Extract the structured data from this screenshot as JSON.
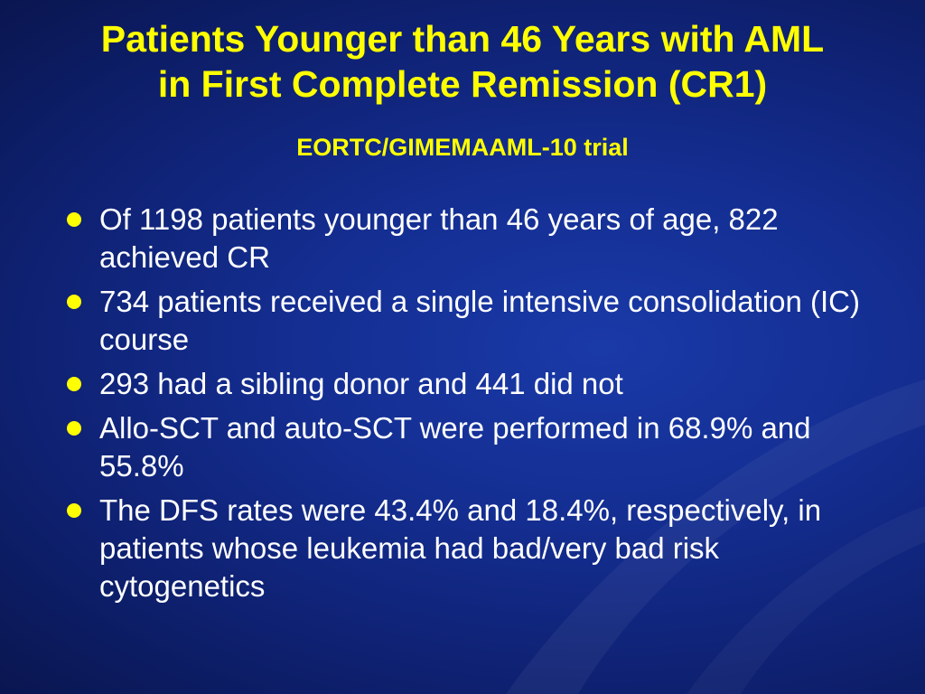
{
  "slide": {
    "title_line1": "Patients Younger than 46 Years with AML",
    "title_line2": "in First Complete Remission (CR1)",
    "subtitle": "EORTC/GIMEMAAML-10 trial",
    "bullets": [
      "Of 1198 patients younger than 46 years of age, 822 achieved CR",
      "734 patients received a single intensive consolidation (IC) course",
      "293 had a sibling donor and 441 did not",
      "Allo-SCT and auto-SCT were performed in 68.9% and 55.8%",
      "The DFS rates were 43.4% and 18.4%, respectively, in patients whose leukemia had bad/very bad risk cytogenetics"
    ]
  },
  "colors": {
    "background": "#142e92",
    "title": "#ffff00",
    "bullet_marker": "#ffff00",
    "body_text": "#ffffff"
  }
}
